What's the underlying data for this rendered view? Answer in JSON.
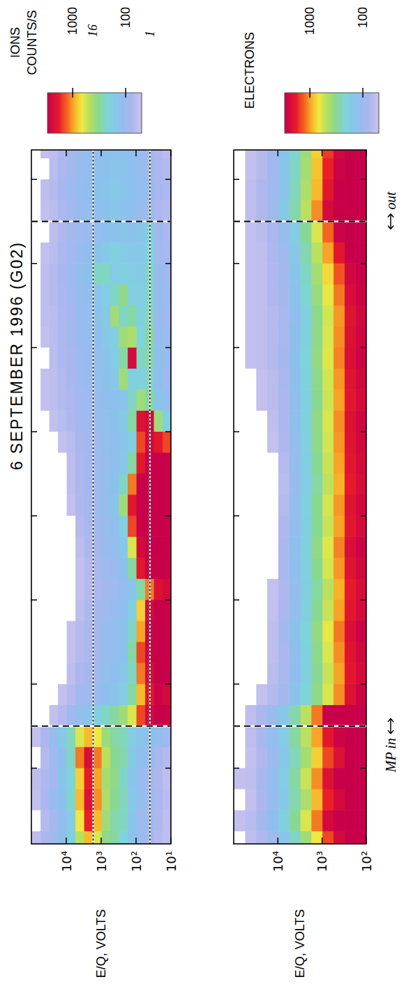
{
  "chart_data": [
    {
      "type": "heatmap",
      "title": "6 SEPTEMBER 1996 (G02)",
      "ylabel": "E/Q, VOLTS",
      "log": "y",
      "tick_labels": "y",
      "xlim": [
        0.1,
        8.35
      ],
      "xticks": [
        1,
        2,
        3,
        4,
        5,
        6,
        7,
        8
      ],
      "ylim": [
        10,
        100000
      ],
      "yticks": [
        {
          "value": 10,
          "label": "10¹"
        },
        {
          "value": 100,
          "label": "10²"
        },
        {
          "value": 1000,
          "label": "10³"
        },
        {
          "value": 10000,
          "label": "10⁴"
        }
      ],
      "time_bins": [
        0,
        0.25,
        0.5,
        0.75,
        1,
        1.25,
        1.5,
        1.75,
        2,
        2.25,
        2.5,
        2.75,
        3,
        3.25,
        3.5,
        3.75,
        4,
        4.25,
        4.5,
        4.75,
        5,
        5.25,
        5.5,
        5.75,
        6,
        6.25,
        6.5,
        6.75,
        7,
        7.25,
        7.5,
        7.75,
        8,
        8.25,
        8.5
      ],
      "energy_bins": [
        10,
        17.8,
        31.6,
        56.2,
        100,
        178,
        316,
        562,
        1000,
        1780,
        3160,
        5620,
        10000,
        17800,
        31600,
        56200,
        100000
      ],
      "counts": [
        [
          60,
          60,
          65,
          60,
          70,
          100,
          3000,
          2500,
          3000,
          3000,
          3000,
          3000,
          2500,
          3000,
          3000,
          3000,
          3000,
          3000,
          3000,
          1500,
          200,
          120,
          100,
          110,
          100,
          90,
          100,
          90,
          85,
          80,
          70,
          75,
          70,
          65
        ],
        [
          70,
          75,
          80,
          75,
          85,
          120,
          3000,
          2800,
          3000,
          3000,
          3000,
          3000,
          2200,
          3000,
          3000,
          3000,
          3000,
          3000,
          3000,
          2000,
          400,
          150,
          130,
          140,
          120,
          110,
          120,
          110,
          100,
          100,
          80,
          85,
          80,
          75
        ],
        [
          90,
          95,
          100,
          90,
          110,
          140,
          2500,
          2000,
          2400,
          2800,
          2800,
          2500,
          1200,
          3000,
          3000,
          3000,
          3000,
          3000,
          3000,
          2500,
          2500,
          300,
          250,
          280,
          300,
          260,
          240,
          250,
          220,
          200,
          100,
          110,
          100,
          95
        ],
        [
          110,
          100,
          120,
          110,
          130,
          150,
          1500,
          900,
          1200,
          1500,
          1000,
          800,
          300,
          2000,
          2500,
          3000,
          3000,
          3000,
          2000,
          1500,
          2200,
          400,
          200,
          250,
          220,
          200,
          180,
          170,
          160,
          150,
          110,
          120,
          115,
          110
        ],
        [
          140,
          150,
          160,
          150,
          170,
          180,
          600,
          300,
          250,
          300,
          250,
          200,
          150,
          300,
          600,
          1500,
          2000,
          1200,
          300,
          200,
          300,
          250,
          200,
          2500,
          450,
          300,
          200,
          180,
          160,
          140,
          130,
          140,
          130,
          125
        ],
        [
          220,
          250,
          260,
          240,
          280,
          260,
          400,
          180,
          160,
          140,
          140,
          130,
          120,
          140,
          160,
          200,
          400,
          250,
          160,
          150,
          170,
          150,
          400,
          300,
          400,
          250,
          350,
          200,
          180,
          150,
          140,
          150,
          145,
          140
        ],
        [
          300,
          280,
          320,
          350,
          330,
          300,
          300,
          150,
          130,
          120,
          120,
          110,
          100,
          110,
          120,
          130,
          150,
          140,
          130,
          130,
          140,
          130,
          160,
          180,
          200,
          400,
          250,
          180,
          200,
          140,
          150,
          160,
          150,
          145
        ],
        [
          350,
          400,
          450,
          420,
          500,
          380,
          250,
          130,
          120,
          110,
          110,
          100,
          90,
          100,
          110,
          110,
          120,
          120,
          110,
          120,
          120,
          130,
          140,
          150,
          160,
          170,
          180,
          250,
          160,
          130,
          140,
          150,
          140,
          135
        ],
        [
          600,
          900,
          1100,
          1000,
          1200,
          700,
          200,
          110,
          100,
          90,
          90,
          90,
          80,
          85,
          90,
          95,
          100,
          100,
          100,
          100,
          110,
          110,
          120,
          120,
          130,
          140,
          150,
          250,
          140,
          120,
          130,
          140,
          130,
          125
        ],
        [
          900,
          1800,
          2200,
          1900,
          2400,
          900,
          150,
          100,
          90,
          80,
          80,
          75,
          70,
          70,
          80,
          85,
          90,
          90,
          90,
          90,
          100,
          100,
          110,
          110,
          120,
          120,
          130,
          140,
          130,
          110,
          120,
          125,
          120,
          115
        ],
        [
          500,
          700,
          900,
          800,
          1200,
          600,
          120,
          90,
          80,
          70,
          70,
          60,
          55,
          55,
          60,
          70,
          75,
          80,
          80,
          85,
          90,
          95,
          100,
          100,
          105,
          110,
          115,
          120,
          110,
          100,
          110,
          115,
          110,
          105
        ],
        [
          200,
          180,
          240,
          220,
          250,
          260,
          100,
          70,
          60,
          55,
          55,
          0,
          0,
          0,
          0,
          0,
          55,
          60,
          60,
          65,
          75,
          80,
          85,
          85,
          90,
          90,
          95,
          100,
          95,
          90,
          95,
          100,
          95,
          90
        ],
        [
          130,
          120,
          140,
          150,
          130,
          160,
          70,
          55,
          0,
          0,
          0,
          0,
          0,
          0,
          0,
          0,
          0,
          0,
          0,
          55,
          65,
          70,
          70,
          75,
          75,
          80,
          80,
          85,
          80,
          75,
          80,
          85,
          80,
          75
        ],
        [
          100,
          90,
          110,
          95,
          100,
          120,
          55,
          0,
          0,
          0,
          0,
          0,
          0,
          0,
          0,
          0,
          0,
          0,
          0,
          0,
          55,
          60,
          60,
          65,
          65,
          65,
          70,
          70,
          65,
          60,
          65,
          70,
          65,
          60
        ],
        [
          80,
          70,
          80,
          75,
          70,
          80,
          0,
          0,
          0,
          0,
          0,
          0,
          0,
          0,
          0,
          0,
          0,
          0,
          0,
          0,
          0,
          55,
          55,
          0,
          55,
          60,
          60,
          60,
          55,
          0,
          55,
          60,
          0,
          55
        ],
        [
          60,
          0,
          55,
          60,
          0,
          55,
          0,
          0,
          0,
          0,
          0,
          0,
          0,
          0,
          0,
          0,
          0,
          0,
          0,
          0,
          0,
          0,
          0,
          0,
          0,
          0,
          0,
          0,
          0,
          0,
          0,
          0,
          0,
          0
        ]
      ],
      "colorbar": {
        "title": "IONS",
        "label": "COUNTS/S",
        "lim": [
          50,
          3000
        ],
        "ticks": [
          1000,
          100
        ]
      },
      "reference_lines": [
        {
          "value": 1700,
          "label": "16",
          "line_style": "dotted"
        },
        {
          "value": 40,
          "label": "1",
          "line_style": "dotted"
        }
      ]
    },
    {
      "type": "heatmap",
      "ylabel": "E/Q, VOLTS",
      "log": "y",
      "tick_labels": "y",
      "xlim": [
        0.1,
        8.35
      ],
      "xticks": [
        1,
        2,
        3,
        4,
        5,
        6,
        7,
        8
      ],
      "ylim": [
        100,
        100000
      ],
      "yticks": [
        {
          "value": 100,
          "label": "10²"
        },
        {
          "value": 1000,
          "label": "10³"
        },
        {
          "value": 10000,
          "label": "10⁴"
        }
      ],
      "time_bins": [
        0,
        0.25,
        0.5,
        0.75,
        1,
        1.25,
        1.5,
        1.75,
        2,
        2.25,
        2.5,
        2.75,
        3,
        3.25,
        3.5,
        3.75,
        4,
        4.25,
        4.5,
        4.75,
        5,
        5.25,
        5.5,
        5.75,
        6,
        6.25,
        6.5,
        6.75,
        7,
        7.25,
        7.5,
        7.75,
        8,
        8.25,
        8.5
      ],
      "energy_bins": [
        100,
        178,
        316,
        562,
        1000,
        1780,
        3160,
        5620,
        10000,
        17800,
        31600,
        56200,
        100000
      ],
      "counts": [
        [
          3000,
          3000,
          3000,
          3000,
          3000,
          3000,
          3000,
          2800,
          2500,
          2600,
          2800,
          2500,
          2400,
          2600,
          2800,
          2500,
          2600,
          2400,
          2500,
          2600,
          2700,
          2500,
          2600,
          2800,
          2700,
          2600,
          2800,
          2900,
          3000,
          3000,
          3000,
          3000,
          3000,
          3000
        ],
        [
          3000,
          3000,
          3000,
          3000,
          3000,
          3000,
          3000,
          2200,
          2000,
          2100,
          2300,
          2000,
          1900,
          2100,
          2300,
          2000,
          2100,
          1900,
          2000,
          2100,
          2200,
          2000,
          2100,
          2300,
          2200,
          2100,
          2400,
          2600,
          3000,
          3000,
          3000,
          3000,
          3000,
          3000
        ],
        [
          2500,
          3000,
          2500,
          3000,
          2200,
          2800,
          3000,
          1100,
          1000,
          1100,
          1200,
          1000,
          950,
          1050,
          1150,
          1000,
          1050,
          950,
          1000,
          1050,
          1100,
          1000,
          1050,
          1150,
          1100,
          1050,
          1200,
          1400,
          2000,
          2800,
          3000,
          3000,
          2800,
          2600
        ],
        [
          1500,
          2500,
          1800,
          2200,
          1500,
          2000,
          3000,
          600,
          550,
          600,
          650,
          550,
          500,
          580,
          620,
          550,
          580,
          520,
          550,
          580,
          600,
          560,
          580,
          620,
          600,
          580,
          650,
          750,
          1000,
          1300,
          2500,
          2000,
          1800,
          1600
        ],
        [
          700,
          1200,
          900,
          1100,
          800,
          1000,
          1200,
          350,
          320,
          340,
          360,
          320,
          300,
          330,
          350,
          320,
          330,
          300,
          320,
          340,
          350,
          330,
          340,
          360,
          350,
          340,
          380,
          420,
          500,
          600,
          1100,
          900,
          850,
          800
        ],
        [
          400,
          600,
          450,
          550,
          420,
          500,
          500,
          220,
          200,
          210,
          220,
          200,
          190,
          200,
          210,
          190,
          200,
          180,
          190,
          200,
          210,
          200,
          210,
          220,
          210,
          200,
          230,
          250,
          280,
          320,
          500,
          450,
          420,
          400
        ],
        [
          250,
          320,
          280,
          300,
          260,
          300,
          280,
          140,
          130,
          130,
          140,
          120,
          120,
          130,
          130,
          120,
          120,
          110,
          115,
          120,
          130,
          125,
          130,
          135,
          130,
          125,
          140,
          150,
          160,
          180,
          280,
          260,
          250,
          240
        ],
        [
          150,
          200,
          170,
          180,
          160,
          180,
          160,
          90,
          85,
          80,
          90,
          80,
          75,
          80,
          80,
          75,
          70,
          65,
          70,
          75,
          80,
          80,
          85,
          90,
          85,
          85,
          90,
          95,
          100,
          110,
          160,
          150,
          150,
          140
        ],
        [
          100,
          130,
          110,
          120,
          105,
          120,
          110,
          70,
          65,
          60,
          60,
          55,
          55,
          0,
          0,
          0,
          0,
          0,
          0,
          55,
          60,
          65,
          65,
          70,
          70,
          70,
          75,
          75,
          75,
          80,
          100,
          100,
          95,
          90
        ],
        [
          75,
          90,
          80,
          85,
          75,
          85,
          80,
          55,
          0,
          0,
          0,
          0,
          0,
          0,
          0,
          0,
          0,
          0,
          0,
          0,
          0,
          55,
          55,
          60,
          60,
          60,
          60,
          60,
          60,
          65,
          75,
          75,
          70,
          70
        ],
        [
          60,
          65,
          55,
          60,
          55,
          60,
          60,
          0,
          0,
          0,
          0,
          0,
          0,
          0,
          0,
          0,
          0,
          0,
          0,
          0,
          0,
          0,
          0,
          55,
          55,
          55,
          55,
          55,
          55,
          55,
          60,
          60,
          55,
          55
        ],
        [
          0,
          55,
          0,
          55,
          0,
          0,
          0,
          0,
          0,
          0,
          0,
          0,
          0,
          0,
          0,
          0,
          0,
          0,
          0,
          0,
          0,
          0,
          0,
          0,
          0,
          0,
          0,
          0,
          0,
          0,
          0,
          0,
          0,
          0
        ]
      ],
      "colorbar": {
        "title": "ELECTRONS",
        "lim": [
          50,
          3000
        ],
        "ticks": [
          1000,
          100
        ]
      },
      "boundaries": [
        {
          "x": 1.5,
          "label": "MP in",
          "line_style": "dashed"
        },
        {
          "x": 7.5,
          "label": "out",
          "line_style": "dashed"
        }
      ]
    }
  ]
}
